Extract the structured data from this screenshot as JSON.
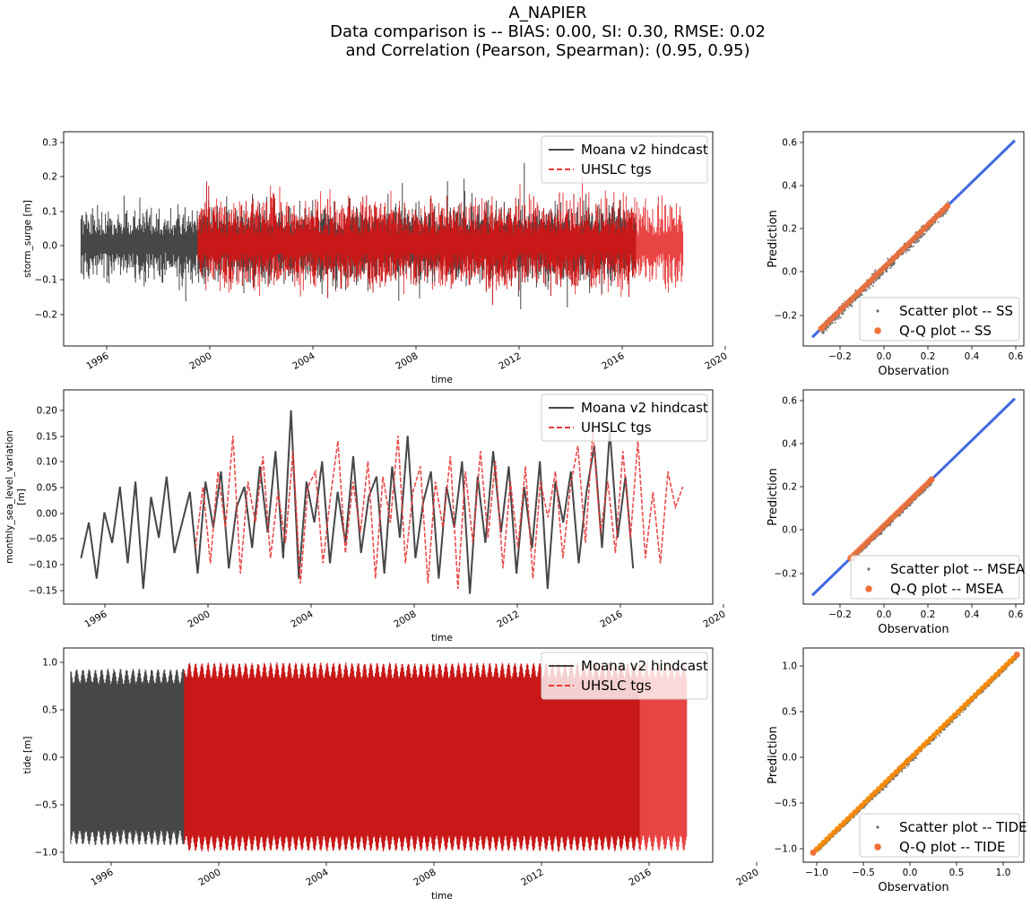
{
  "figure": {
    "title_lines": [
      "A_NAPIER",
      "Data comparison is -- BIAS: 0.00, SI: 0.30, RMSE: 0.02",
      "and Correlation (Pearson, Spearman): (0.95, 0.95)"
    ]
  },
  "colors": {
    "hindcast": "#474747",
    "tgs": "#e83a3a",
    "overlap": "#c81818",
    "scatter": "#6e6e6e",
    "qq": "#f07038",
    "identity": "#4169e1",
    "qq_tide": "#ff8c00"
  },
  "chart_data": [
    {
      "type": "line",
      "panel": "ts1",
      "xlabel": "time",
      "ylabel": "storm_surge [m]",
      "xlim": [
        1994.3,
        2020.4
      ],
      "ylim": [
        -0.3,
        0.32
      ],
      "xticks": [
        "1996",
        "2000",
        "2004",
        "2008",
        "2012",
        "2016",
        "2020"
      ],
      "yticks": [
        "0.3",
        "0.2",
        "0.1",
        "0.0",
        "−0.1",
        "−0.2"
      ],
      "legend": [
        "Moana v2 hindcast",
        "UHSLC tgs"
      ],
      "legend_position": "top-right",
      "series": [
        {
          "name": "Moana v2 hindcast",
          "start": 1995.0,
          "end": 2017.3,
          "amp": 0.14,
          "peak_max": 0.285,
          "peak_min": -0.26
        },
        {
          "name": "UHSLC tgs",
          "start": 1999.7,
          "end": 2019.2,
          "amp": 0.15,
          "peak_max": 0.3,
          "peak_min": -0.22
        }
      ]
    },
    {
      "type": "scatter",
      "panel": "sc1",
      "xlabel": "Observation",
      "ylabel": "Prediction",
      "xlim": [
        -0.34,
        0.64
      ],
      "ylim": [
        -0.34,
        0.64
      ],
      "xticks": [
        "−0.2",
        "0.0",
        "0.2",
        "0.4",
        "0.6"
      ],
      "yticks": [
        "0.6",
        "0.4",
        "0.2",
        "0.0",
        "−0.2"
      ],
      "legend": [
        "Scatter plot -- SS",
        "Q-Q plot -- SS"
      ],
      "legend_position": "lower-right",
      "range": [
        -0.26,
        0.3
      ]
    },
    {
      "type": "line",
      "panel": "ts2",
      "xlabel": "time",
      "ylabel": "monthly_sea_level_variation [m]",
      "xlim": [
        1994.3,
        2020.4
      ],
      "ylim": [
        -0.18,
        0.24
      ],
      "xticks": [
        "1996",
        "2000",
        "2004",
        "2008",
        "2012",
        "2016",
        "2020"
      ],
      "yticks": [
        "0.20",
        "0.15",
        "0.10",
        "0.05",
        "0.00",
        "−0.05",
        "−0.10",
        "−0.15"
      ],
      "legend": [
        "Moana v2 hindcast",
        "UHSLC tgs"
      ],
      "legend_position": "top-right",
      "series": [
        {
          "name": "Moana v2 hindcast",
          "start": 1995.0,
          "end": 2017.2,
          "values": [
            -0.09,
            -0.02,
            -0.13,
            0.0,
            -0.06,
            0.05,
            -0.1,
            0.06,
            -0.15,
            0.03,
            -0.05,
            0.07,
            -0.08,
            -0.02,
            0.04,
            -0.12,
            0.06,
            -0.03,
            0.08,
            -0.11,
            0.01,
            0.05,
            -0.07,
            0.09,
            -0.04,
            0.12,
            -0.09,
            0.2,
            -0.13,
            0.06,
            -0.02,
            0.1,
            -0.1,
            0.04,
            -0.06,
            0.11,
            -0.08,
            0.03,
            0.07,
            -0.12,
            0.09,
            -0.05,
            0.15,
            -0.09,
            0.02,
            0.08,
            -0.13,
            0.05,
            -0.03,
            0.1,
            -0.16,
            0.07,
            -0.06,
            0.12,
            -0.04,
            0.09,
            -0.12,
            0.05,
            -0.07,
            0.1,
            -0.15,
            0.06,
            -0.02,
            0.08,
            -0.1,
            0.04,
            0.13,
            -0.07,
            0.16,
            -0.05,
            0.07,
            -0.11
          ]
        },
        {
          "name": "UHSLC tgs",
          "start": 1999.6,
          "end": 2019.2,
          "values": [
            -0.07,
            0.05,
            -0.1,
            0.08,
            -0.03,
            0.15,
            -0.12,
            0.06,
            -0.02,
            0.11,
            -0.09,
            0.04,
            -0.06,
            0.12,
            -0.14,
            0.05,
            0.08,
            -0.1,
            0.03,
            0.14,
            -0.08,
            0.06,
            -0.04,
            0.1,
            -0.13,
            0.07,
            -0.02,
            0.15,
            -0.1,
            0.04,
            0.09,
            -0.14,
            0.06,
            -0.03,
            0.11,
            -0.15,
            0.08,
            -0.06,
            0.12,
            -0.05,
            0.1,
            -0.11,
            0.06,
            -0.07,
            0.09,
            -0.13,
            0.06,
            -0.01,
            0.08,
            -0.09,
            0.05,
            0.13,
            -0.06,
            0.16,
            -0.04,
            0.06,
            -0.08,
            0.12,
            -0.05,
            0.14,
            -0.09,
            0.04,
            -0.1,
            0.08,
            0.01,
            0.05
          ]
        }
      ]
    },
    {
      "type": "scatter",
      "panel": "sc2",
      "xlabel": "Observation",
      "ylabel": "Prediction",
      "xlim": [
        -0.34,
        0.64
      ],
      "ylim": [
        -0.34,
        0.64
      ],
      "xticks": [
        "−0.2",
        "0.0",
        "0.2",
        "0.4",
        "0.6"
      ],
      "yticks": [
        "0.6",
        "0.4",
        "0.2",
        "0.0",
        "−0.2"
      ],
      "legend": [
        "Scatter plot -- MSEA",
        "Q-Q plot -- MSEA"
      ],
      "legend_position": "lower-right",
      "range": [
        -0.13,
        0.23
      ]
    },
    {
      "type": "line",
      "panel": "ts3",
      "xlabel": "time",
      "ylabel": "tide [m]",
      "xlim": [
        1993.7,
        2021.1
      ],
      "ylim": [
        -1.1,
        1.12
      ],
      "xticks": [
        "1996",
        "2000",
        "2004",
        "2008",
        "2012",
        "2016",
        "2020"
      ],
      "yticks": [
        "1.0",
        "0.5",
        "0.0",
        "−0.5",
        "−1.0"
      ],
      "legend": [
        "Moana v2 hindcast",
        "UHSLC tgs"
      ],
      "legend_position": "top-right",
      "series": [
        {
          "name": "Moana v2 hindcast",
          "start": 1994.0,
          "end": 2018.0,
          "amp": 0.9
        },
        {
          "name": "UHSLC tgs",
          "start": 1998.8,
          "end": 2020.0,
          "amp": 0.96
        }
      ]
    },
    {
      "type": "scatter",
      "panel": "sc3",
      "xlabel": "Observation",
      "ylabel": "Prediction",
      "xlim": [
        -1.1,
        1.12
      ],
      "ylim": [
        -1.1,
        1.12
      ],
      "xticks": [
        "−1.0",
        "−0.5",
        "0.0",
        "0.5",
        "1.0"
      ],
      "yticks": [
        "1.0",
        "0.5",
        "0.0",
        "−0.5",
        "−1.0"
      ],
      "legend": [
        "Scatter plot -- TIDE",
        "Q-Q plot -- TIDE"
      ],
      "legend_position": "lower-right",
      "range": [
        -1.0,
        1.05
      ]
    }
  ]
}
